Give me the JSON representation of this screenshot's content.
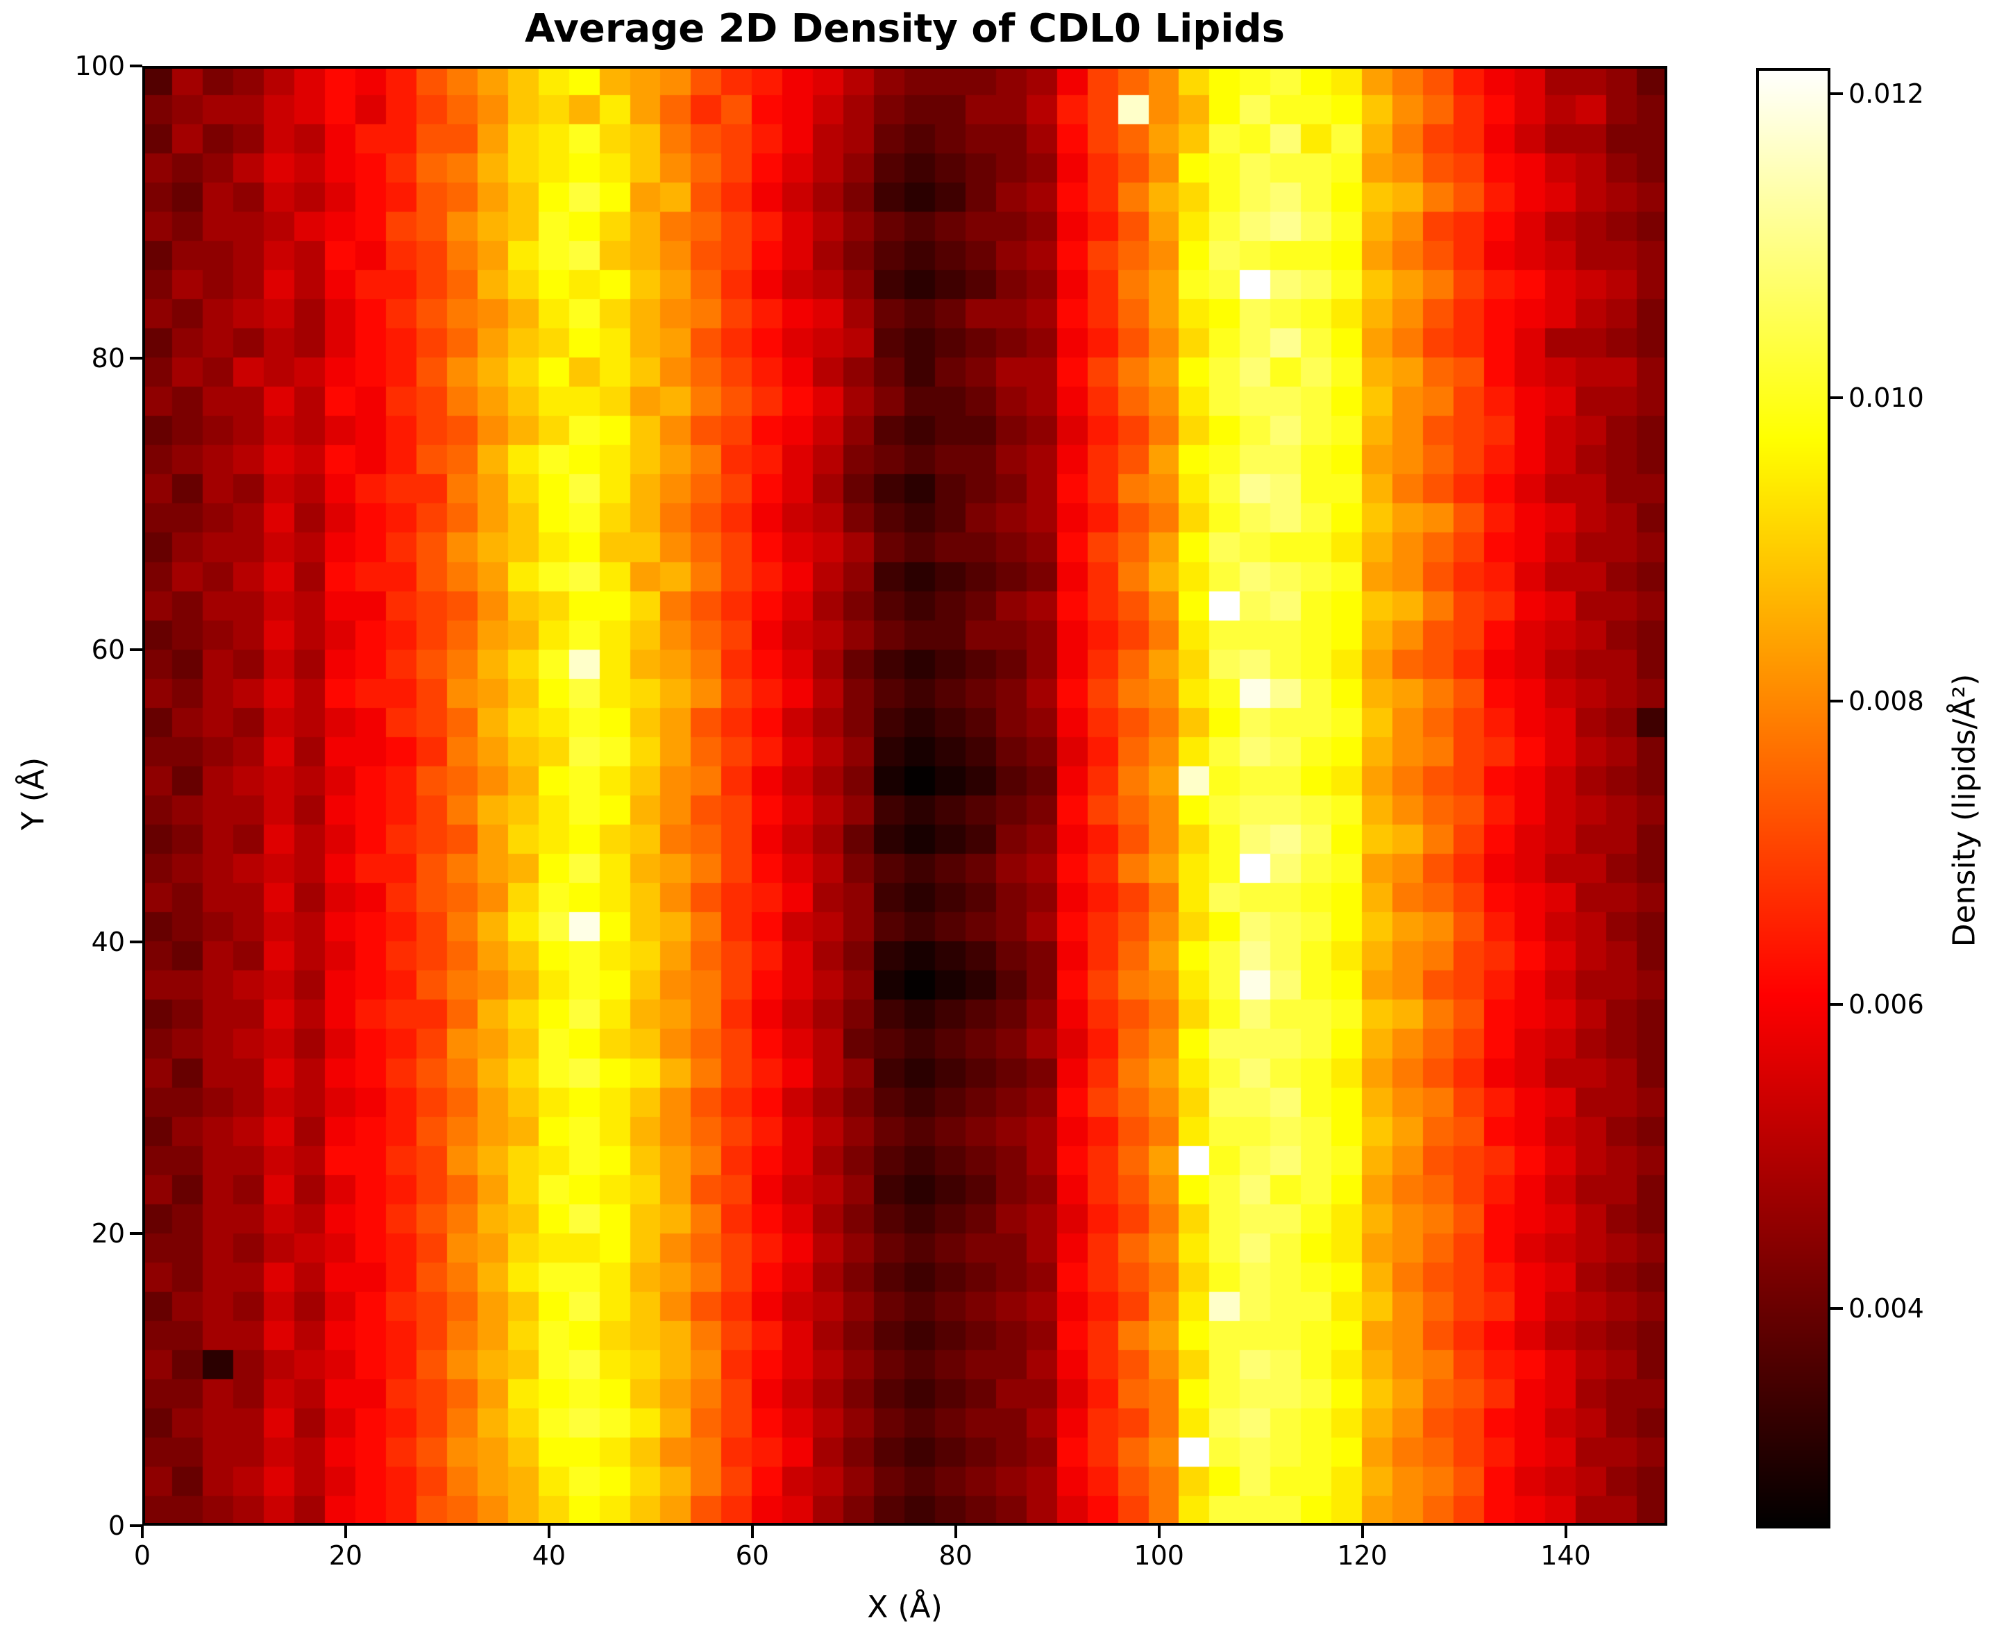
{
  "title": "Average 2D Density of CDL0 Lipids",
  "x_axis": {
    "label": "X (Å)",
    "tick_labels": [
      "0",
      "20",
      "40",
      "60",
      "80",
      "100",
      "120",
      "140"
    ],
    "tick_values": [
      0,
      20,
      40,
      60,
      80,
      100,
      120,
      140
    ],
    "range": [
      0,
      150
    ]
  },
  "y_axis": {
    "label": "Y (Å)",
    "tick_labels": [
      "0",
      "20",
      "40",
      "60",
      "80",
      "100"
    ],
    "tick_values": [
      0,
      20,
      40,
      60,
      80,
      100
    ],
    "range": [
      0,
      100
    ]
  },
  "colorbar": {
    "label": "Density (lipids/Å²)",
    "tick_labels": [
      "0.012",
      "0.010",
      "0.008",
      "0.006",
      "0.004"
    ],
    "tick_values": [
      0.012,
      0.01,
      0.008,
      0.006,
      0.004
    ],
    "vmin": 0.00255,
    "vmax": 0.01217
  },
  "chart_data": {
    "type": "heatmap",
    "title": "Average 2D Density of CDL0 Lipids",
    "xlabel": "X (Å)",
    "ylabel": "Y (Å)",
    "colorbar_label": "Density (lipids/Å²)",
    "colormap": "hot",
    "x_range": [
      0,
      150
    ],
    "y_range": [
      0,
      100
    ],
    "grid_cols": 50,
    "grid_rows": 50,
    "legend": "none",
    "grid_lines": false,
    "value_encoding": {
      "scheme": "one base36 char per cell, level 0-35",
      "value_at_level_0": 0.0026,
      "value_at_level_35": 0.0122,
      "units": "lipids/Å²"
    },
    "rows_top_to_bottom": [
      "48679bdcehjlnpqmlkhfecb9766678cgikoqrsqpljhecb8875",
      "6788abdbegiknomplifhdca8655779egxkmqtrrqnkifdb9a76",
      "5867a9ceehhlopronjhgec98545668dgilnsrupsmjgfca8866",
      "7679bacdfijmopqpnkigdb97434567cfhkqrtssrlkhgdca976",
      "6587a9bdehilnqsqlmhfca86323578dfjmortusqnmjhecb987",
      "76889bcdghkmnrqomjigeb97545667cehlpsuvtrmkgfdb9876",
      "5778a9dcfgjlprsnmkhgdb86434578dgikqtsrrqljhfcba887",
      "6878b9ceegimoqpqnlifca97323467cfjlrszutrnljgedba97",
      "7689a8bdfhjkmpromkjgecb8545778dfilpqtsrpmkhfdcb986",
      "578798bdegilnoqpmlhfdba9434567cehkortvsqljgfdb8876",
      "687a9acdehkmoqnpnkigec97535688dgjlqsurtrmlihdba997",
      "7688b9dcfgjlnppolmjhfdb8644578cfikpsttsqnkjgecb887",
      "5678a9bceghkmorqnkhgdca7434467begjoqsusrmkhgfca976",
      "6789badcehimprqpnljfeb96545578cfhlqrttrqlkigeca876",
      "7587a9ceffjloqspmkigdb85324568dfjkpsvurrmjhfdb9977",
      "6678b8bdegilnqromjhfca96434678cehjortusqnlkhecb986",
      "5788a9cdfhkmnpqnnkigdba8545567dgilqtsrrpmkigdca887",
      "6879b8deehjlprsplmjgec97323456cfjmpsutsrlkhfeb9976",
      "7688a9ccfghknoqqojhfdb86434578dfhkqzturqnmjgfcb887",
      "5678b9bdegilmprpnkigca97544667cegjpsssrqmkhgdba976",
      "6587a8cdfhjmorxpmljfdb85323457cfilotusrplihfcb9886",
      "7689b9deegklnqspomkgec96434568dgjkpryvsqmljhdca987",
      "5787a9bcfgimoprqnlhfda86323467cfhjnqtssrnkigecb873",
      "6678b8ccdfjlnosroligeb97212356beikpsutrqmkjgfdb986",
      "7589a9bdehikmqrpnkjfca86101245cfjlxrssqpljhgdca876",
      "6788a8cdegjmnprqmkhgdb97323456dgikqsttsrmkiheca987",
      "5687b9bdfghlopqonjigca85212367cehkoruvtqnmjgdba886",
      "6789a9ceehjlmqspmljgdb96434578dfjlprzusrlkhfcb9976",
      "7688b8bcfhikorqpnkhfec87323467cegjptssrqmjigdcb887",
      "5678a9cdegjmpsyqnmjfda97434568dfhkoqutsqnlkheca976",
      "6587b9bdfgilnqrpoligeb86212356cfilqsvtrpmkjgfdb986",
      "7789a8cdehjkmprqnkjgdb97101246dgjkpsyurqlkhgeca887",
      "5688b9ceffimoqspmljfca86323457cfhjorussrnmjhdcb976",
      "6789a8bdegklnrqonkigdb95434568beikqtttsqmkigdba876",
      "7588b9cdfhjmorsqpmjgec97323456cfjlpsusrpljhfcb9986",
      "6678a9bcegilnpqpnkhfda86434567dgikotturqmkjgecb887",
      "5789b8cdehjlmqrpmkigeb97545678cehjpsstsqnlihdca976",
      "6688a9ddfgkmoprqnljfdb86434568dfilzrtusrmkhgfdb987",
      "7587b8bdegilorqpolhgca97323467cfhkqsursqljigeca886",
      "5688a9cdfhjmnqsqnmjfdb86434578begjosttrpmkjhdcb976",
      "66879abdegkloppqnkigec97545668cfikpsusqplkigdba987",
      "7688b9ccehjmprrpmljgdb86434567dfhjortsrqmjhgecb876",
      "5787a8bdfgilnqspnkhfca97545678cegkpxtsspnkigfca987",
      "6688b9cdegjlorqonmjgeb86434567dfjlqsssrqlkhfdb9876",
      "75279abdehkmnrspomkfdb97545668cfhkosutrpmkjgedb986",
      "6687a9ccfgilpqrqnljgca86434577beijqsttsqnlihfcb877",
      "5788b8bdegjmorsrpmigdb97545668cfgjptusrpmkhgdca976",
      "6688a9cdfhklnqqpnkjfec86434567dfikzstsrqljigecb887",
      "7589b9bdegjlmprqomjgda97545678cehjoqtrrpmkjhdba976",
      "6678a8cdehikmoqpnlhfcb86434568bdgjpsssqplkigdcb886"
    ]
  }
}
